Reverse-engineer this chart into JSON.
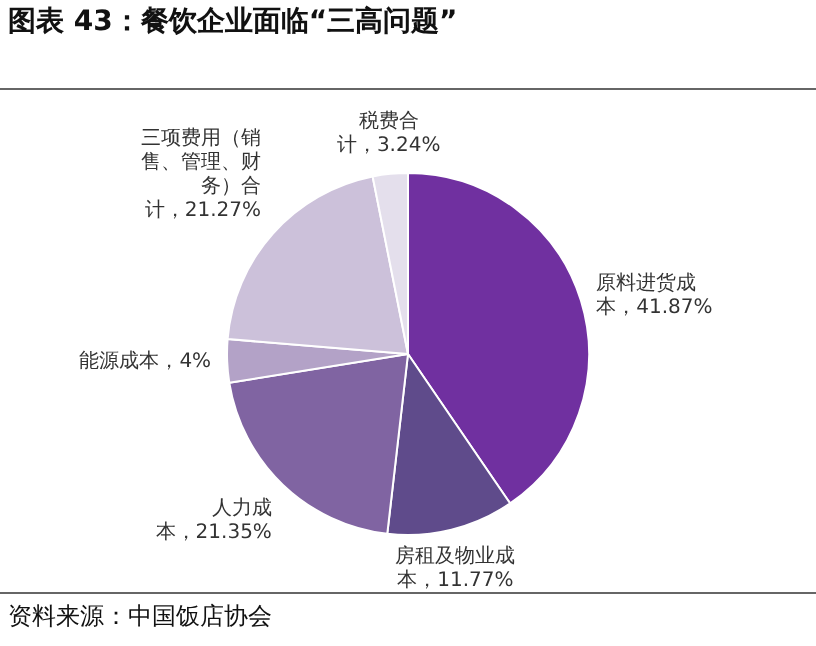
{
  "chart_data": {
    "type": "pie",
    "title": "图表 43：餐饮企业面临“三高问题”",
    "categories": [
      "原料进货成本",
      "房租及物业成本",
      "人力成本",
      "能源成本",
      "三项费用（销售、管理、财务）合计",
      "税费合计"
    ],
    "values": [
      41.87,
      11.77,
      21.35,
      4,
      21.27,
      3.24
    ],
    "value_labels": [
      "41.87%",
      "11.77%",
      "21.35%",
      "4%",
      "21.27%",
      "3.24%"
    ],
    "colors": [
      "#7030a0",
      "#5f4b8b",
      "#8064a2",
      "#b3a2c7",
      "#ccc1da",
      "#e4dfec"
    ],
    "legend": false,
    "annotations": [
      "资料来源：中国饭店协会"
    ]
  }
}
